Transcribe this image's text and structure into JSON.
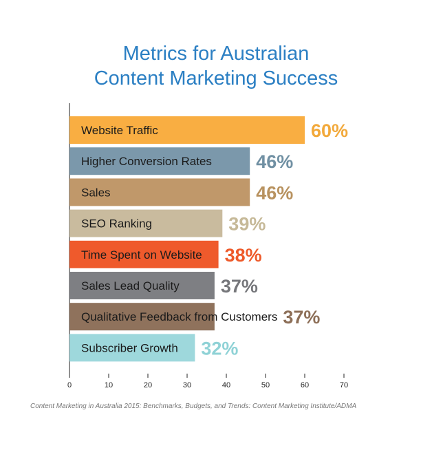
{
  "chart_data": {
    "type": "bar",
    "orientation": "horizontal",
    "title_line1": "Metrics for Australian",
    "title_line2": "Content Marketing Success",
    "categories": [
      "Website Traffic",
      "Higher Conversion Rates",
      "Sales",
      "SEO Ranking",
      "Time Spent on Website",
      "Sales Lead Quality",
      "Qualitative Feedback from Customers",
      "Subscriber Growth"
    ],
    "values": [
      60,
      46,
      46,
      39,
      38,
      37,
      37,
      32
    ],
    "value_labels": [
      "60%",
      "46%",
      "46%",
      "39%",
      "38%",
      "37%",
      "37%",
      "32%"
    ],
    "colors": [
      "#f9ae42",
      "#7b98ab",
      "#c0986a",
      "#c9bb9e",
      "#ef5a2c",
      "#7e7f83",
      "#8f725c",
      "#9ed8dc"
    ],
    "label_colors": [
      "#f2a93b",
      "#7090a3",
      "#b8925f",
      "#c6b998",
      "#ee5a2a",
      "#76777b",
      "#8d6f58",
      "#8fd2d6"
    ],
    "xlim": [
      0,
      70
    ],
    "x_ticks": [
      0,
      10,
      20,
      30,
      40,
      50,
      60,
      70
    ],
    "source": "Content Marketing in Australia 2015: Benchmarks, Budgets, and Trends: Content Marketing Institute/ADMA"
  }
}
